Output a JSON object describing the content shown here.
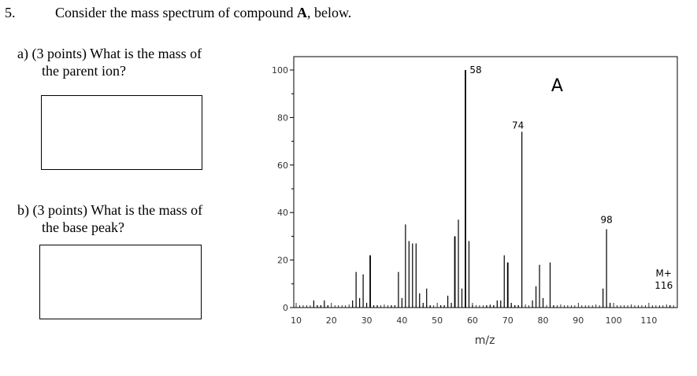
{
  "question": {
    "number": "5.",
    "intro_prefix": "Consider the mass spectrum of compound ",
    "intro_bold": "A",
    "intro_suffix": ", below."
  },
  "parts": [
    {
      "label": "a)",
      "points": "(3 points)",
      "line1": "What is the mass of",
      "line2": "the parent ion?"
    },
    {
      "label": "b)",
      "points": "(3 points)",
      "line1": "What is the mass of",
      "line2": "the base peak?"
    }
  ],
  "answers": {
    "a": "",
    "b": ""
  },
  "chart_data": {
    "type": "bar",
    "title": "A",
    "xlabel": "m/z",
    "ylabel": "",
    "xlim": [
      10,
      118
    ],
    "ylim": [
      0,
      100
    ],
    "x_ticks": [
      10,
      20,
      30,
      40,
      50,
      60,
      70,
      80,
      90,
      100,
      110
    ],
    "y_ticks": [
      0,
      20,
      40,
      60,
      80,
      100
    ],
    "grid": false,
    "peaks": [
      {
        "mz": 15,
        "i": 3
      },
      {
        "mz": 16,
        "i": 1
      },
      {
        "mz": 17,
        "i": 1
      },
      {
        "mz": 18,
        "i": 3
      },
      {
        "mz": 19,
        "i": 1
      },
      {
        "mz": 26,
        "i": 3
      },
      {
        "mz": 27,
        "i": 15
      },
      {
        "mz": 28,
        "i": 4
      },
      {
        "mz": 29,
        "i": 14
      },
      {
        "mz": 30,
        "i": 2
      },
      {
        "mz": 31,
        "i": 22
      },
      {
        "mz": 32,
        "i": 1
      },
      {
        "mz": 33,
        "i": 1
      },
      {
        "mz": 37,
        "i": 1
      },
      {
        "mz": 38,
        "i": 1
      },
      {
        "mz": 39,
        "i": 15
      },
      {
        "mz": 40,
        "i": 4
      },
      {
        "mz": 41,
        "i": 35
      },
      {
        "mz": 42,
        "i": 28
      },
      {
        "mz": 43,
        "i": 27
      },
      {
        "mz": 44,
        "i": 27
      },
      {
        "mz": 45,
        "i": 6
      },
      {
        "mz": 46,
        "i": 2
      },
      {
        "mz": 47,
        "i": 8
      },
      {
        "mz": 48,
        "i": 1
      },
      {
        "mz": 51,
        "i": 1
      },
      {
        "mz": 52,
        "i": 1
      },
      {
        "mz": 53,
        "i": 5
      },
      {
        "mz": 54,
        "i": 2
      },
      {
        "mz": 55,
        "i": 30
      },
      {
        "mz": 56,
        "i": 37
      },
      {
        "mz": 57,
        "i": 8
      },
      {
        "mz": 58,
        "i": 100
      },
      {
        "mz": 59,
        "i": 28
      },
      {
        "mz": 60,
        "i": 1
      },
      {
        "mz": 64,
        "i": 1
      },
      {
        "mz": 65,
        "i": 1
      },
      {
        "mz": 66,
        "i": 1
      },
      {
        "mz": 67,
        "i": 3
      },
      {
        "mz": 68,
        "i": 3
      },
      {
        "mz": 69,
        "i": 22
      },
      {
        "mz": 70,
        "i": 19
      },
      {
        "mz": 71,
        "i": 2
      },
      {
        "mz": 72,
        "i": 1
      },
      {
        "mz": 73,
        "i": 1
      },
      {
        "mz": 74,
        "i": 74
      },
      {
        "mz": 77,
        "i": 3
      },
      {
        "mz": 78,
        "i": 9
      },
      {
        "mz": 79,
        "i": 18
      },
      {
        "mz": 80,
        "i": 4
      },
      {
        "mz": 82,
        "i": 19
      },
      {
        "mz": 83,
        "i": 1
      },
      {
        "mz": 97,
        "i": 8
      },
      {
        "mz": 98,
        "i": 33
      },
      {
        "mz": 99,
        "i": 2
      },
      {
        "mz": 116,
        "i": 1
      }
    ],
    "annotations": [
      {
        "text": "58",
        "mz": 58,
        "i": 100
      },
      {
        "text": "74",
        "mz": 74,
        "i": 74
      },
      {
        "text": "98",
        "mz": 98,
        "i": 33
      },
      {
        "text": "M+",
        "mz": 116,
        "i": 13
      },
      {
        "text": "116",
        "mz": 116,
        "i": 8
      }
    ]
  }
}
